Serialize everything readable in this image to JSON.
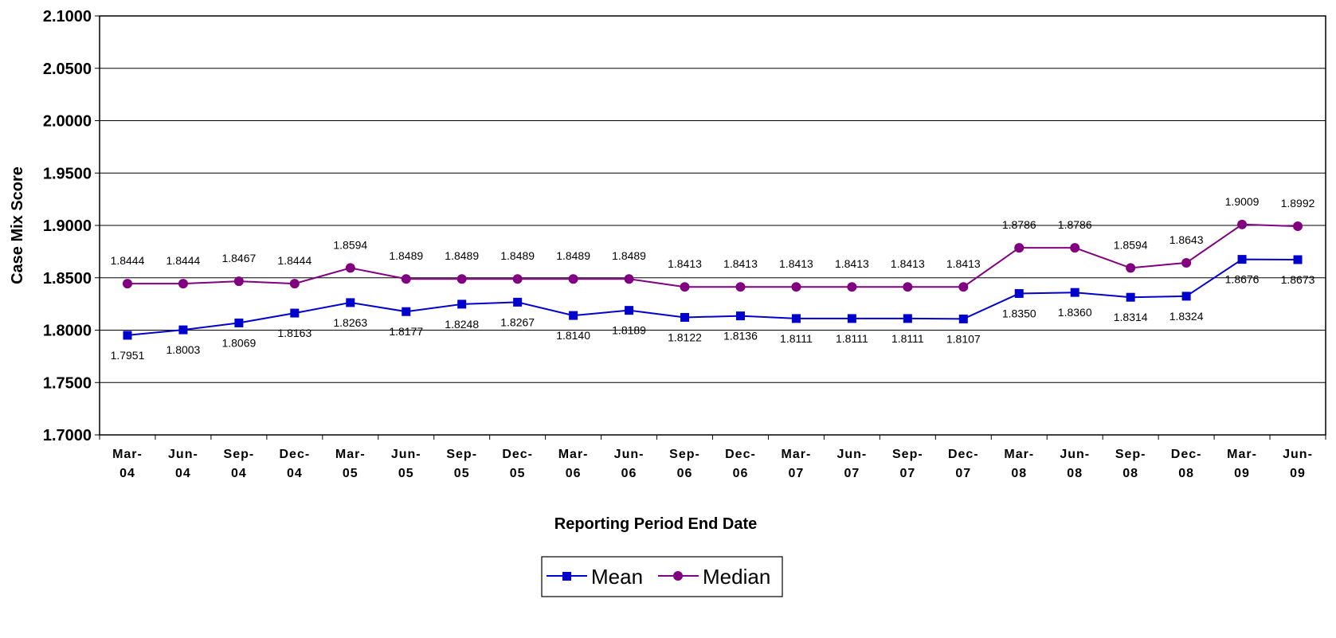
{
  "chart_data": {
    "type": "line",
    "title": "",
    "xlabel": "Reporting Period End Date",
    "ylabel": "Case Mix Score",
    "ylim": [
      1.7,
      2.1
    ],
    "yticks": [
      "1.7000",
      "1.7500",
      "1.8000",
      "1.8500",
      "1.9000",
      "1.9500",
      "2.0000",
      "2.0500",
      "2.1000"
    ],
    "grid": "horizontal",
    "legend": "bottom-center",
    "categories": [
      [
        "Mar-",
        "04"
      ],
      [
        "Jun-",
        "04"
      ],
      [
        "Sep-",
        "04"
      ],
      [
        "Dec-",
        "04"
      ],
      [
        "Mar-",
        "05"
      ],
      [
        "Jun-",
        "05"
      ],
      [
        "Sep-",
        "05"
      ],
      [
        "Dec-",
        "05"
      ],
      [
        "Mar-",
        "06"
      ],
      [
        "Jun-",
        "06"
      ],
      [
        "Sep-",
        "06"
      ],
      [
        "Dec-",
        "06"
      ],
      [
        "Mar-",
        "07"
      ],
      [
        "Jun-",
        "07"
      ],
      [
        "Sep-",
        "07"
      ],
      [
        "Dec-",
        "07"
      ],
      [
        "Mar-",
        "08"
      ],
      [
        "Jun-",
        "08"
      ],
      [
        "Sep-",
        "08"
      ],
      [
        "Dec-",
        "08"
      ],
      [
        "Mar-",
        "09"
      ],
      [
        "Jun-",
        "09"
      ]
    ],
    "series": [
      {
        "name": "Mean",
        "color": "#0000CC",
        "marker": "square",
        "values": [
          1.7951,
          1.8003,
          1.8069,
          1.8163,
          1.8263,
          1.8177,
          1.8248,
          1.8267,
          1.814,
          1.8189,
          1.8122,
          1.8136,
          1.8111,
          1.8111,
          1.8111,
          1.8107,
          1.835,
          1.836,
          1.8314,
          1.8324,
          1.8676,
          1.8673
        ],
        "labels": [
          "1.7951",
          "1.8003",
          "1.8069",
          "1.8163",
          "1.8263",
          "1.8177",
          "1.8248",
          "1.8267",
          "1.8140",
          "1.8189",
          "1.8122",
          "1.8136",
          "1.8111",
          "1.8111",
          "1.8111",
          "1.8107",
          "1.8350",
          "1.8360",
          "1.8314",
          "1.8324",
          "1.8676",
          "1.8673"
        ]
      },
      {
        "name": "Median",
        "color": "#800080",
        "marker": "circle",
        "values": [
          1.8444,
          1.8444,
          1.8467,
          1.8444,
          1.8594,
          1.8489,
          1.8489,
          1.8489,
          1.8489,
          1.8489,
          1.8413,
          1.8413,
          1.8413,
          1.8413,
          1.8413,
          1.8413,
          1.8786,
          1.8786,
          1.8594,
          1.8643,
          1.9009,
          1.8992
        ],
        "labels": [
          "1.8444",
          "1.8444",
          "1.8467",
          "1.8444",
          "1.8594",
          "1.8489",
          "1.8489",
          "1.8489",
          "1.8489",
          "1.8489",
          "1.8413",
          "1.8413",
          "1.8413",
          "1.8413",
          "1.8413",
          "1.8413",
          "1.8786",
          "1.8786",
          "1.8594",
          "1.8643",
          "1.9009",
          "1.8992"
        ]
      }
    ]
  }
}
